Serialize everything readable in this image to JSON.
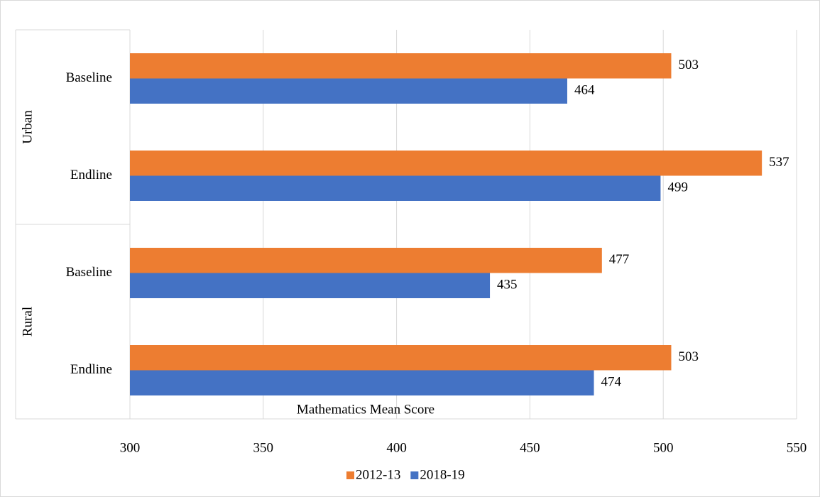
{
  "chart_data": {
    "type": "barh",
    "x_label": "Mathematics Mean Score",
    "groups": [
      "Urban",
      "Rural"
    ],
    "categories": [
      "Baseline",
      "Endline",
      "Baseline",
      "Endline"
    ],
    "series": [
      {
        "name": "2012-13",
        "color": "#ed7d31",
        "values": [
          503,
          537,
          477,
          503
        ]
      },
      {
        "name": "2018-19",
        "color": "#4472c4",
        "values": [
          464,
          499,
          435,
          474
        ]
      }
    ],
    "xlim": [
      300,
      550
    ],
    "xticks": [
      300,
      350,
      400,
      450,
      500,
      550
    ],
    "grid": true,
    "legend": "bottom"
  }
}
